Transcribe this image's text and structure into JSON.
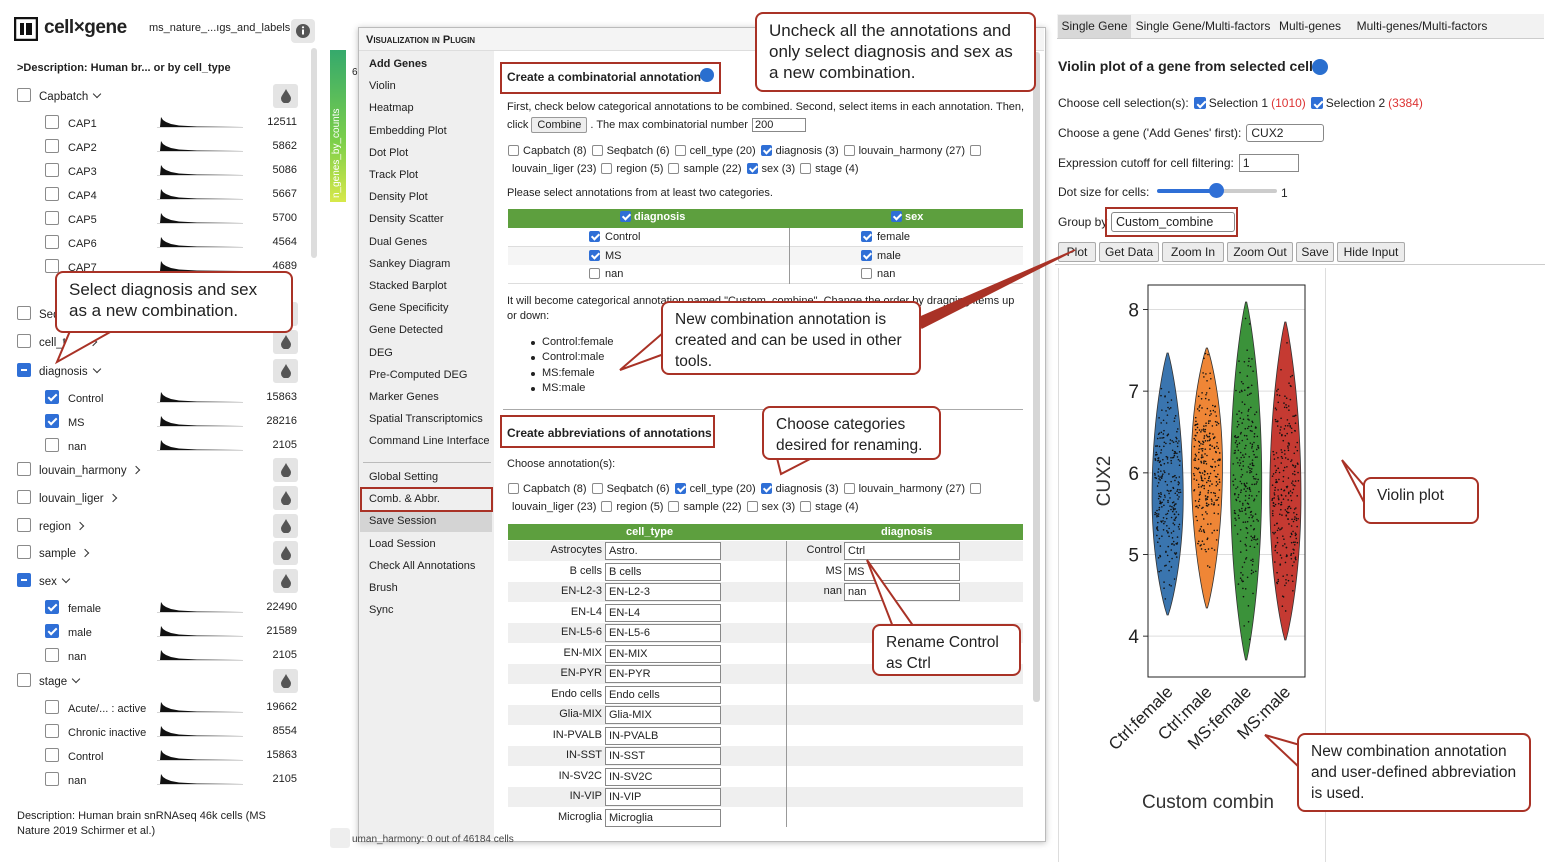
{
  "header": {
    "app": "cell×gene",
    "dataset": "ms_nature_...ıgs_and_labels",
    "description": ">Description: Human br... or by cell_type"
  },
  "categories": [
    {
      "name": "Capbatch",
      "state": "none",
      "expanded": true,
      "items": [
        {
          "label": "CAP1",
          "count": 12511,
          "checked": false
        },
        {
          "label": "CAP2",
          "count": 5862,
          "checked": false
        },
        {
          "label": "CAP3",
          "count": 5086,
          "checked": false
        },
        {
          "label": "CAP4",
          "count": 5667,
          "checked": false
        },
        {
          "label": "CAP5",
          "count": 5700,
          "checked": false
        },
        {
          "label": "CAP6",
          "count": 4564,
          "checked": false
        },
        {
          "label": "CAP7",
          "count": 4689,
          "checked": false
        }
      ]
    },
    {
      "name": "Seqbatch",
      "state": "none",
      "expanded": false,
      "items": []
    },
    {
      "name": "cell_type",
      "state": "none",
      "expanded": false,
      "items": []
    },
    {
      "name": "diagnosis",
      "state": "partial",
      "expanded": true,
      "items": [
        {
          "label": "Control",
          "count": 15863,
          "checked": true
        },
        {
          "label": "MS",
          "count": 28216,
          "checked": true
        },
        {
          "label": "nan",
          "count": 2105,
          "checked": false
        }
      ]
    },
    {
      "name": "louvain_harmony",
      "state": "none",
      "expanded": false,
      "items": []
    },
    {
      "name": "louvain_liger",
      "state": "none",
      "expanded": false,
      "items": []
    },
    {
      "name": "region",
      "state": "none",
      "expanded": false,
      "items": []
    },
    {
      "name": "sample",
      "state": "none",
      "expanded": false,
      "items": []
    },
    {
      "name": "sex",
      "state": "partial",
      "expanded": true,
      "items": [
        {
          "label": "female",
          "count": 22490,
          "checked": true
        },
        {
          "label": "male",
          "count": 21589,
          "checked": true
        },
        {
          "label": "nan",
          "count": 2105,
          "checked": false
        }
      ]
    },
    {
      "name": "stage",
      "state": "none",
      "expanded": true,
      "items": [
        {
          "label": "Acute/... : active",
          "count": 19662,
          "checked": false
        },
        {
          "label": "Chronic inactive",
          "count": 8554,
          "checked": false
        },
        {
          "label": "Control",
          "count": 15863,
          "checked": false
        },
        {
          "label": "nan",
          "count": 2105,
          "checked": false
        }
      ]
    }
  ],
  "footer_description": "Description: Human brain snRNAseq 46k cells (MS Nature 2019 Schirmer et al.)",
  "colorbar": {
    "label": "n_genes_by_counts",
    "tick": "6"
  },
  "status": "uman_harmony: 0 out of 46184 cells",
  "plugin": {
    "title": "Visualization in Plugin",
    "menu": [
      "Add Genes",
      "Violin",
      "Heatmap",
      "Embedding Plot",
      "Dot Plot",
      "Track Plot",
      "Density Plot",
      "Density Scatter",
      "Dual Genes",
      "Sankey Diagram",
      "Stacked Barplot",
      "Gene Specificity",
      "Gene Detected",
      "DEG",
      "Pre-Computed DEG",
      "Marker Genes",
      "Spatial Transcriptomics",
      "Command Line Interface"
    ],
    "settings_menu": [
      "Global Setting",
      "Comb. & Abbr.",
      "Save Session",
      "Load Session",
      "Check All Annotations",
      "Brush",
      "Sync"
    ],
    "selected_setting": 1
  },
  "combine": {
    "title": "Create a combinatorial annotation",
    "intro": "First, check below categorical annotations to be combined. Second, select items in each annotation. Then,",
    "click": "click",
    "button": "Combine",
    "max_text": ". The max combinatorial number",
    "max_value": "200",
    "annotations": [
      {
        "label": "Capbatch (8)",
        "checked": false
      },
      {
        "label": "Seqbatch (6)",
        "checked": false
      },
      {
        "label": "cell_type (20)",
        "checked": false
      },
      {
        "label": "diagnosis (3)",
        "checked": true
      },
      {
        "label": "louvain_harmony (27)",
        "checked": false
      },
      {
        "label": "louvain_liger (23)",
        "checked": false
      },
      {
        "label": "region (5)",
        "checked": false
      },
      {
        "label": "sample (22)",
        "checked": false
      },
      {
        "label": "sex (3)",
        "checked": true
      },
      {
        "label": "stage (4)",
        "checked": false
      }
    ],
    "hint": "Please select annotations from at least two categories.",
    "headers": [
      {
        "label": "diagnosis",
        "checked": true
      },
      {
        "label": "sex",
        "checked": true
      }
    ],
    "rows": [
      [
        {
          "label": "Control",
          "checked": true
        },
        {
          "label": "female",
          "checked": true
        }
      ],
      [
        {
          "label": "MS",
          "checked": true
        },
        {
          "label": "male",
          "checked": true
        }
      ],
      [
        {
          "label": "nan",
          "checked": false
        },
        {
          "label": "nan",
          "checked": false
        }
      ]
    ],
    "note": "It will become categorical annotation named \"Custom_combine\". Change the order by dragging items up or down:",
    "combos": [
      "Control:female",
      "Control:male",
      "MS:female",
      "MS:male"
    ]
  },
  "abbr": {
    "title": "Create abbreviations of annotations",
    "choose": "Choose annotation(s):",
    "annotations": [
      {
        "label": "Capbatch (8)",
        "checked": false
      },
      {
        "label": "Seqbatch (6)",
        "checked": false
      },
      {
        "label": "cell_type (20)",
        "checked": true
      },
      {
        "label": "diagnosis (3)",
        "checked": true
      },
      {
        "label": "louvain_harmony (27)",
        "checked": false
      },
      {
        "label": "louvain_liger (23)",
        "checked": false
      },
      {
        "label": "region (5)",
        "checked": false
      },
      {
        "label": "sample (22)",
        "checked": false
      },
      {
        "label": "sex (3)",
        "checked": false
      },
      {
        "label": "stage (4)",
        "checked": false
      }
    ],
    "headers": [
      "cell_type",
      "diagnosis"
    ],
    "left_rows": [
      [
        "Astrocytes",
        "Astro."
      ],
      [
        "B cells",
        "B cells"
      ],
      [
        "EN-L2-3",
        "EN-L2-3"
      ],
      [
        "EN-L4",
        "EN-L4"
      ],
      [
        "EN-L5-6",
        "EN-L5-6"
      ],
      [
        "EN-MIX",
        "EN-MIX"
      ],
      [
        "EN-PYR",
        "EN-PYR"
      ],
      [
        "Endo cells",
        "Endo cells"
      ],
      [
        "Glia-MIX",
        "Glia-MIX"
      ],
      [
        "IN-PVALB",
        "IN-PVALB"
      ],
      [
        "IN-SST",
        "IN-SST"
      ],
      [
        "IN-SV2C",
        "IN-SV2C"
      ],
      [
        "IN-VIP",
        "IN-VIP"
      ],
      [
        "Microglia",
        "Microglia"
      ]
    ],
    "right_rows": [
      [
        "Control",
        "Ctrl"
      ],
      [
        "MS",
        "MS"
      ],
      [
        "nan",
        "nan"
      ]
    ]
  },
  "panel": {
    "tabs": [
      "Single Gene",
      "Single Gene/Multi-factors",
      "Multi-genes",
      "Multi-genes/Multi-factors"
    ],
    "active_tab": 0,
    "title": "Violin plot of a gene from selected cells",
    "selection_label": "Choose cell selection(s):",
    "selections": [
      {
        "label": "Selection 1",
        "count": "(1010)"
      },
      {
        "label": "Selection 2",
        "count": "(3384)"
      }
    ],
    "gene_label": "Choose a gene ('Add Genes' first):",
    "gene": "CUX2",
    "cutoff_label": "Expression cutoff for cell filtering:",
    "cutoff": "1",
    "dot_label": "Dot size for cells:",
    "dot_value": "1",
    "group_label": "Group by",
    "group": "Custom_combine",
    "buttons": [
      "Plot",
      "Get Data",
      "Zoom In",
      "Zoom Out",
      "Save",
      "Hide Input"
    ]
  },
  "chart_data": {
    "type": "violin",
    "ylabel": "CUX2",
    "xlabel": "Custom combin",
    "categories": [
      "Ctrl:female",
      "Ctrl:male",
      "MS:female",
      "MS:male"
    ],
    "colors": [
      "#3a75af",
      "#ef8636",
      "#3b923a",
      "#c53a32"
    ],
    "ylim": [
      3.5,
      8.3
    ],
    "yticks": [
      4,
      5,
      6,
      7,
      8
    ],
    "grid": true
  },
  "callouts": [
    "Uncheck all the annotations and only select diagnosis and sex as a new combination.",
    "Select diagnosis and sex as a new combination.",
    "New combination annotation is created and can be used in other tools.",
    "Choose categories desired for renaming.",
    "Rename Control as Ctrl",
    "Violin plot",
    "New combination annotation and user-defined abbreviation is used."
  ]
}
